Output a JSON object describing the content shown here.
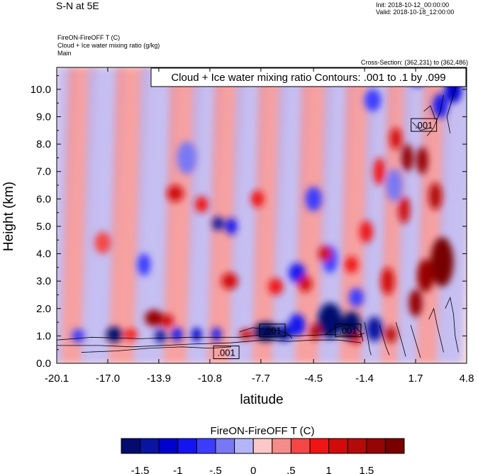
{
  "header": {
    "title": "S-N at 5E",
    "init": "Init: 2018-10-12_00:00:00",
    "valid": "Valid: 2018-10-18_12:00:00",
    "field_line1": "FireON-FireOFF T   (C)",
    "field_line2": "Cloud + Ice water mixing ratio   (g/kg)",
    "field_line3": "Main",
    "cross_section": "Cross-Section: (362,231) to (362,486)"
  },
  "chart_data": {
    "type": "heatmap",
    "title": "Cloud + Ice water mixing ratio Contours: .001 to .1 by .099",
    "xlabel": "latitude",
    "ylabel": "Height (km)",
    "xlim": [
      -20.1,
      4.8
    ],
    "ylim": [
      0.0,
      10.8
    ],
    "xticks": [
      -20.1,
      -17.0,
      -13.9,
      -10.8,
      -7.7,
      -4.5,
      -1.4,
      1.7,
      4.8
    ],
    "xtick_labels": [
      "-20.1",
      "-17.0",
      "-13.9",
      "-10.8",
      "-7.7",
      "-4.5",
      "-1.4",
      "1.7",
      "4.8"
    ],
    "yticks": [
      0,
      1,
      2,
      3,
      4,
      5,
      6,
      7,
      8,
      9,
      10
    ],
    "ytick_labels": [
      "0.0",
      "1.0",
      "2.0",
      "3.0",
      "4.0",
      "5.0",
      "6.0",
      "7.0",
      "8.0",
      "9.0",
      "10.0"
    ],
    "contour_labels": [
      {
        "text": ".001",
        "lat": -9.8,
        "height": 0.4
      },
      {
        "text": ".001",
        "lat": -7.0,
        "height": 1.2
      },
      {
        "text": ".001",
        "lat": -2.4,
        "height": 1.2
      },
      {
        "text": ".001",
        "lat": 2.2,
        "height": 8.7
      }
    ],
    "colorbar": {
      "title": "FireON-FireOFF T  (C)",
      "labels": [
        "-1.5",
        "-1",
        "-.5",
        "0",
        ".5",
        "1",
        "1.5"
      ],
      "colors": [
        "#050a6e",
        "#0a14a0",
        "#0000cc",
        "#1414f0",
        "#3c3cff",
        "#7878f5",
        "#b4b4f8",
        "#fac8c8",
        "#f58c8c",
        "#f54646",
        "#f01414",
        "#d20a0a",
        "#b40a0a",
        "#960505",
        "#780000"
      ]
    },
    "anomalies": [
      {
        "lat": -16.6,
        "h": 1.05,
        "v": -1.8,
        "wl": 0.5,
        "wh": 0.28
      },
      {
        "lat": -18.8,
        "h": 1.0,
        "v": -0.8,
        "wl": 0.4,
        "wh": 0.25
      },
      {
        "lat": -13.8,
        "h": 1.0,
        "v": -1.5,
        "wl": 0.35,
        "wh": 0.25
      },
      {
        "lat": -12.8,
        "h": 1.05,
        "v": -1.0,
        "wl": 0.35,
        "wh": 0.25
      },
      {
        "lat": -11.6,
        "h": 1.05,
        "v": -1.2,
        "wl": 0.3,
        "wh": 0.25
      },
      {
        "lat": -10.4,
        "h": 1.05,
        "v": -1.0,
        "wl": 0.3,
        "wh": 0.25
      },
      {
        "lat": -7.4,
        "h": 1.15,
        "v": -2.0,
        "wl": 0.75,
        "wh": 0.35
      },
      {
        "lat": -6.3,
        "h": 1.1,
        "v": -1.4,
        "wl": 0.5,
        "wh": 0.3
      },
      {
        "lat": -3.5,
        "h": 1.55,
        "v": -2.0,
        "wl": 0.75,
        "wh": 0.65
      },
      {
        "lat": -2.2,
        "h": 1.35,
        "v": -1.8,
        "wl": 0.6,
        "wh": 0.55
      },
      {
        "lat": -0.8,
        "h": 1.25,
        "v": -1.6,
        "wl": 0.5,
        "wh": 0.45
      },
      {
        "lat": -5.5,
        "h": 1.4,
        "v": -0.9,
        "wl": 0.5,
        "wh": 0.4
      },
      {
        "lat": -10.3,
        "h": 5.1,
        "v": -1.4,
        "wl": 0.35,
        "wh": 0.25
      },
      {
        "lat": -9.5,
        "h": 5.0,
        "v": -0.9,
        "wl": 0.35,
        "wh": 0.3
      },
      {
        "lat": -4.5,
        "h": 6.0,
        "v": -0.8,
        "wl": 0.5,
        "wh": 0.45
      },
      {
        "lat": -5.5,
        "h": 3.3,
        "v": -0.9,
        "wl": 0.5,
        "wh": 0.35
      },
      {
        "lat": -3.5,
        "h": 3.8,
        "v": -0.7,
        "wl": 0.45,
        "wh": 0.5
      },
      {
        "lat": -14.8,
        "h": 3.6,
        "v": -0.7,
        "wl": 0.4,
        "wh": 0.4
      },
      {
        "lat": -12.2,
        "h": 7.5,
        "v": -0.6,
        "wl": 0.6,
        "wh": 0.6
      },
      {
        "lat": -0.9,
        "h": 9.6,
        "v": -0.8,
        "wl": 0.5,
        "wh": 0.4
      },
      {
        "lat": 4.0,
        "h": 10.0,
        "v": -1.3,
        "wl": 0.5,
        "wh": 0.5
      },
      {
        "lat": 3.2,
        "h": 9.4,
        "v": -1.0,
        "wl": 0.45,
        "wh": 0.45
      },
      {
        "lat": 1.8,
        "h": 10.4,
        "v": -0.9,
        "wl": 0.4,
        "wh": 0.3
      },
      {
        "lat": 0.4,
        "h": 6.5,
        "v": -0.6,
        "wl": 0.5,
        "wh": 0.6
      },
      {
        "lat": -1.9,
        "h": 2.4,
        "v": -0.8,
        "wl": 0.45,
        "wh": 0.35
      },
      {
        "lat": -14.2,
        "h": 1.65,
        "v": 1.4,
        "wl": 0.55,
        "wh": 0.3
      },
      {
        "lat": -13.4,
        "h": 1.55,
        "v": 1.1,
        "wl": 0.4,
        "wh": 0.25
      },
      {
        "lat": -15.6,
        "h": 1.05,
        "v": 0.8,
        "wl": 0.4,
        "wh": 0.2
      },
      {
        "lat": -8.6,
        "h": 1.05,
        "v": 0.9,
        "wl": 0.4,
        "wh": 0.2
      },
      {
        "lat": -4.4,
        "h": 1.15,
        "v": 1.3,
        "wl": 0.35,
        "wh": 0.3
      },
      {
        "lat": -12.9,
        "h": 6.2,
        "v": 1.0,
        "wl": 0.5,
        "wh": 0.3
      },
      {
        "lat": -11.3,
        "h": 5.8,
        "v": 0.7,
        "wl": 0.4,
        "wh": 0.3
      },
      {
        "lat": -7.9,
        "h": 6.0,
        "v": 0.8,
        "wl": 0.4,
        "wh": 0.3
      },
      {
        "lat": -9.6,
        "h": 3.0,
        "v": 0.9,
        "wl": 0.5,
        "wh": 0.3
      },
      {
        "lat": -6.8,
        "h": 2.8,
        "v": 0.8,
        "wl": 0.45,
        "wh": 0.3
      },
      {
        "lat": -5.0,
        "h": 2.9,
        "v": 1.0,
        "wl": 0.4,
        "wh": 0.3
      },
      {
        "lat": -3.8,
        "h": 4.0,
        "v": 1.0,
        "wl": 0.4,
        "wh": 0.3
      },
      {
        "lat": -2.2,
        "h": 3.6,
        "v": 0.8,
        "wl": 0.4,
        "wh": 0.3
      },
      {
        "lat": -1.3,
        "h": 4.8,
        "v": 0.8,
        "wl": 0.4,
        "wh": 0.4
      },
      {
        "lat": 0.0,
        "h": 3.0,
        "v": 0.9,
        "wl": 0.4,
        "wh": 0.5
      },
      {
        "lat": 3.3,
        "h": 3.7,
        "v": 2.0,
        "wl": 0.7,
        "wh": 0.9
      },
      {
        "lat": 2.3,
        "h": 3.2,
        "v": 1.5,
        "wl": 0.5,
        "wh": 0.6
      },
      {
        "lat": 1.7,
        "h": 2.2,
        "v": 1.4,
        "wl": 0.4,
        "wh": 0.5
      },
      {
        "lat": 1.2,
        "h": 7.5,
        "v": 1.6,
        "wl": 0.35,
        "wh": 0.5
      },
      {
        "lat": 2.1,
        "h": 7.4,
        "v": 1.6,
        "wl": 0.35,
        "wh": 0.5
      },
      {
        "lat": 2.9,
        "h": 6.1,
        "v": 1.3,
        "wl": 0.4,
        "wh": 0.5
      },
      {
        "lat": 1.0,
        "h": 5.6,
        "v": 1.0,
        "wl": 0.35,
        "wh": 0.5
      },
      {
        "lat": 0.5,
        "h": 8.2,
        "v": 1.0,
        "wl": 0.35,
        "wh": 0.4
      },
      {
        "lat": -0.5,
        "h": 7.0,
        "v": 0.8,
        "wl": 0.35,
        "wh": 0.5
      },
      {
        "lat": -17.3,
        "h": 4.4,
        "v": 0.6,
        "wl": 0.5,
        "wh": 0.4
      },
      {
        "lat": 0.2,
        "h": 1.05,
        "v": 1.2,
        "wl": 0.35,
        "wh": 0.3
      },
      {
        "lat": -1.9,
        "h": 0.9,
        "v": 1.0,
        "wl": 0.3,
        "wh": 0.2
      }
    ],
    "contour_paths": [
      {
        "pts": [
          [
            -20.1,
            0.85
          ],
          [
            -18.0,
            0.95
          ],
          [
            -15.0,
            0.9
          ],
          [
            -12.0,
            0.95
          ],
          [
            -9.0,
            0.95
          ],
          [
            -7.5,
            1.05
          ],
          [
            -5.5,
            1.0
          ],
          [
            -3.5,
            1.05
          ],
          [
            -2.0,
            1.0
          ],
          [
            -1.4,
            1.1
          ]
        ]
      },
      {
        "pts": [
          [
            -20.1,
            0.65
          ],
          [
            -17.5,
            0.65
          ],
          [
            -15.5,
            0.6
          ],
          [
            -12.0,
            0.7
          ],
          [
            -9.5,
            0.75
          ],
          [
            -7.5,
            0.85
          ],
          [
            -6.0,
            0.8
          ],
          [
            -4.5,
            0.85
          ],
          [
            -3.0,
            0.85
          ],
          [
            -1.6,
            0.75
          ]
        ]
      },
      {
        "pts": [
          [
            -18.6,
            0.4
          ],
          [
            -16.5,
            0.45
          ],
          [
            -14.5,
            0.55
          ],
          [
            -12.5,
            0.6
          ],
          [
            -10.8,
            0.55
          ],
          [
            -9.5,
            0.6
          ]
        ]
      },
      {
        "pts": [
          [
            -9.0,
            1.15
          ],
          [
            -8.2,
            1.3
          ],
          [
            -7.5,
            1.25
          ],
          [
            -6.6,
            1.2
          ],
          [
            -6.0,
            1.05
          ],
          [
            -5.8,
            0.9
          ]
        ]
      },
      {
        "pts": [
          [
            -3.8,
            1.05
          ],
          [
            -3.2,
            1.3
          ],
          [
            -2.6,
            1.4
          ],
          [
            -2.0,
            1.35
          ],
          [
            -1.6,
            1.1
          ],
          [
            -1.5,
            0.8
          ]
        ]
      },
      {
        "pts": [
          [
            -1.4,
            1.5
          ],
          [
            -1.3,
            1.2
          ],
          [
            -1.2,
            0.9
          ],
          [
            -1.1,
            0.5
          ],
          [
            -1.0,
            0.3
          ]
        ]
      },
      {
        "pts": [
          [
            -0.5,
            1.4
          ],
          [
            -0.3,
            1.0
          ],
          [
            -0.1,
            0.6
          ],
          [
            0.1,
            0.3
          ]
        ]
      },
      {
        "pts": [
          [
            0.5,
            1.5
          ],
          [
            0.7,
            1.1
          ],
          [
            0.9,
            0.7
          ],
          [
            1.1,
            0.25
          ]
        ]
      },
      {
        "pts": [
          [
            1.4,
            1.4
          ],
          [
            1.6,
            1.0
          ],
          [
            1.8,
            0.6
          ],
          [
            2.0,
            0.2
          ]
        ]
      },
      {
        "pts": [
          [
            2.5,
            1.6
          ],
          [
            2.8,
            2.0
          ],
          [
            3.0,
            1.4
          ],
          [
            3.2,
            0.9
          ],
          [
            3.4,
            0.4
          ]
        ]
      },
      {
        "pts": [
          [
            3.5,
            2.0
          ],
          [
            3.8,
            2.4
          ],
          [
            4.0,
            1.8
          ],
          [
            4.1,
            1.0
          ],
          [
            4.3,
            0.4
          ]
        ]
      },
      {
        "pts": [
          [
            3.4,
            9.8
          ],
          [
            3.2,
            9.2
          ],
          [
            2.8,
            8.6
          ],
          [
            2.4,
            8.3
          ]
        ]
      },
      {
        "pts": [
          [
            4.2,
            10.2
          ],
          [
            3.9,
            9.6
          ],
          [
            3.6,
            9.0
          ],
          [
            3.8,
            8.4
          ]
        ]
      },
      {
        "pts": [
          [
            2.9,
            8.9
          ],
          [
            2.6,
            9.4
          ],
          [
            2.2,
            9.2
          ]
        ]
      },
      {
        "pts": [
          [
            1.5,
            8.8
          ],
          [
            2.0,
            8.5
          ],
          [
            2.6,
            8.6
          ]
        ]
      }
    ]
  }
}
